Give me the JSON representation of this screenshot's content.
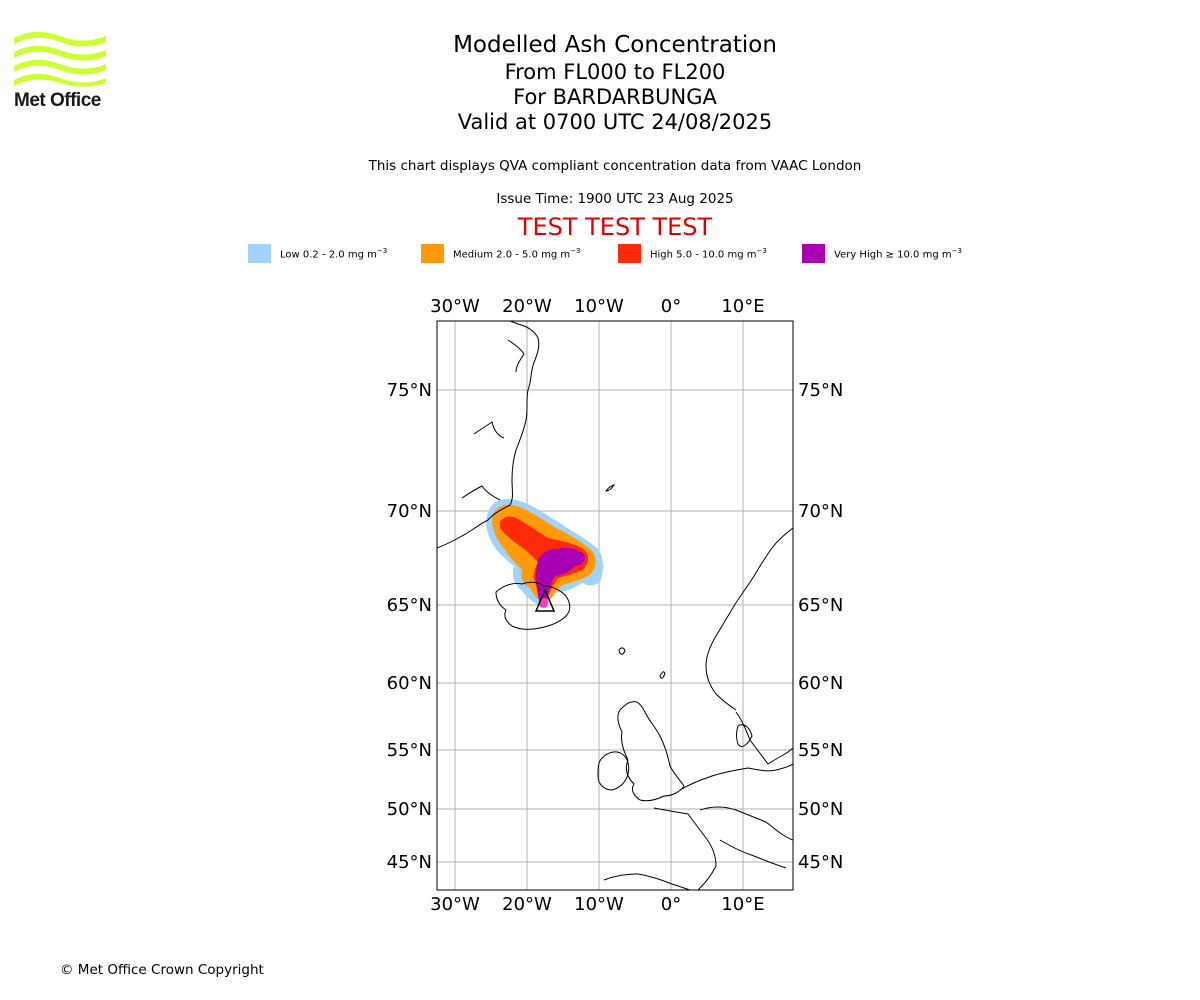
{
  "logo": {
    "text": "Met Office",
    "color": "#ccff33"
  },
  "header": {
    "title": "Modelled Ash Concentration",
    "levels": "From FL000 to FL200",
    "volcano": "For BARDARBUNGA",
    "valid": "Valid at 0700 UTC 24/08/2025",
    "description": "This chart displays QVA compliant concentration data from VAAC London",
    "issue_time": "Issue Time: 1900 UTC 23 Aug 2025",
    "test_banner": "TEST TEST TEST",
    "test_color": "#e00000"
  },
  "legend": [
    {
      "label": "Low 0.2 - 2.0 mg m",
      "color": "#a0d2fa"
    },
    {
      "label": "Medium 2.0 - 5.0 mg m",
      "color": "#ff9a0a"
    },
    {
      "label": "High 5.0 - 10.0 mg m",
      "color": "#ff2a0a"
    },
    {
      "label": "Very High  ≥  10.0 mg m",
      "color": "#aa00b4"
    }
  ],
  "legend_unit_exponent": "−3",
  "map": {
    "lon_ticks": [
      "30°W",
      "20°W",
      "10°W",
      "0°",
      "10°E"
    ],
    "lat_ticks": [
      "75°N",
      "70°N",
      "65°N",
      "60°N",
      "55°N",
      "50°N",
      "45°N"
    ],
    "grid_color": "#b0b0b0",
    "volcano_marker": "triangle"
  },
  "copyright": "© Met Office Crown Copyright"
}
